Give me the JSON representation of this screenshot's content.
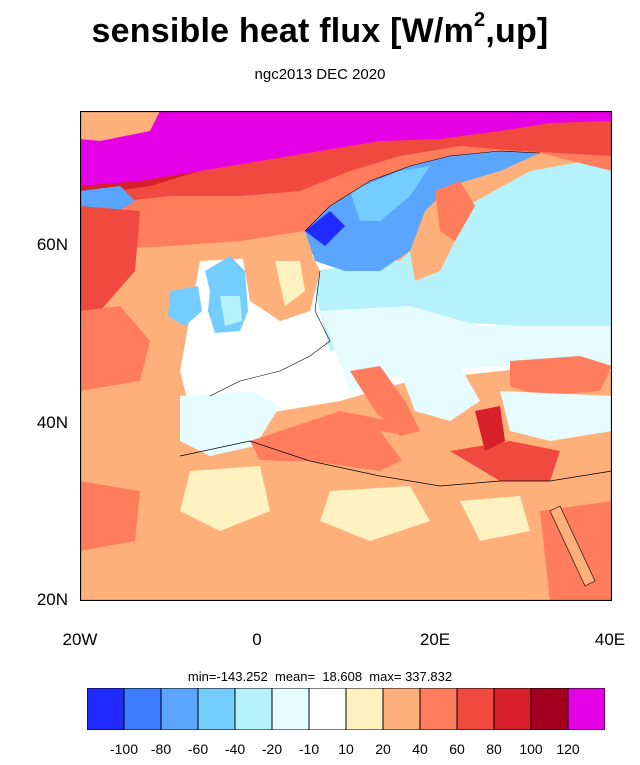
{
  "title": {
    "text": "sensible heat flux [W/m",
    "sup": "2",
    "tail": ",up]"
  },
  "subtitle": "ngc2013 DEC 2020",
  "lat_labels": [
    "60N",
    "40N",
    "20N"
  ],
  "lon_labels": [
    "20W",
    "0",
    "20E",
    "40E"
  ],
  "stats": "min=-143.252  mean=  18.608  max= 337.832",
  "colorbar": {
    "colors": [
      "#1f2bff",
      "#3d7dff",
      "#5aa5ff",
      "#74ccff",
      "#b5f2fb",
      "#e7fcff",
      "#ffffff",
      "#fff2c0",
      "#ffb07a",
      "#ff7d5c",
      "#f04a40",
      "#d8202a",
      "#a30020",
      "#e600e6"
    ],
    "labels": [
      "-100",
      "-80",
      "-60",
      "-40",
      "-20",
      "-10",
      "10",
      "20",
      "40",
      "60",
      "80",
      "100",
      "120"
    ]
  }
}
